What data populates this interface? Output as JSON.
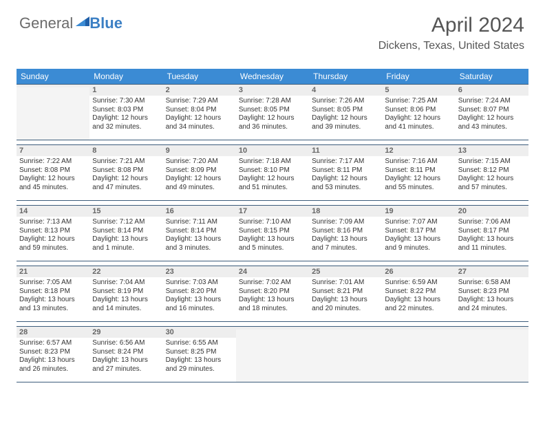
{
  "logo": {
    "general": "General",
    "blue": "Blue"
  },
  "header": {
    "title": "April 2024",
    "location": "Dickens, Texas, United States",
    "title_fontsize": 30,
    "loc_fontsize": 16,
    "title_color": "#555555"
  },
  "calendar": {
    "header_bg": "#3b8bd4",
    "header_fg": "#ffffff",
    "rule_color": "#3b5b7a",
    "daynum_bg": "#eeeeee",
    "empty_bg": "#f4f4f4",
    "cell_fontsize": 10,
    "columns": [
      "Sunday",
      "Monday",
      "Tuesday",
      "Wednesday",
      "Thursday",
      "Friday",
      "Saturday"
    ],
    "weeks": [
      [
        {
          "num": "",
          "sunrise": "",
          "sunset": "",
          "daylight1": "",
          "daylight2": ""
        },
        {
          "num": "1",
          "sunrise": "Sunrise: 7:30 AM",
          "sunset": "Sunset: 8:03 PM",
          "daylight1": "Daylight: 12 hours",
          "daylight2": "and 32 minutes."
        },
        {
          "num": "2",
          "sunrise": "Sunrise: 7:29 AM",
          "sunset": "Sunset: 8:04 PM",
          "daylight1": "Daylight: 12 hours",
          "daylight2": "and 34 minutes."
        },
        {
          "num": "3",
          "sunrise": "Sunrise: 7:28 AM",
          "sunset": "Sunset: 8:05 PM",
          "daylight1": "Daylight: 12 hours",
          "daylight2": "and 36 minutes."
        },
        {
          "num": "4",
          "sunrise": "Sunrise: 7:26 AM",
          "sunset": "Sunset: 8:05 PM",
          "daylight1": "Daylight: 12 hours",
          "daylight2": "and 39 minutes."
        },
        {
          "num": "5",
          "sunrise": "Sunrise: 7:25 AM",
          "sunset": "Sunset: 8:06 PM",
          "daylight1": "Daylight: 12 hours",
          "daylight2": "and 41 minutes."
        },
        {
          "num": "6",
          "sunrise": "Sunrise: 7:24 AM",
          "sunset": "Sunset: 8:07 PM",
          "daylight1": "Daylight: 12 hours",
          "daylight2": "and 43 minutes."
        }
      ],
      [
        {
          "num": "7",
          "sunrise": "Sunrise: 7:22 AM",
          "sunset": "Sunset: 8:08 PM",
          "daylight1": "Daylight: 12 hours",
          "daylight2": "and 45 minutes."
        },
        {
          "num": "8",
          "sunrise": "Sunrise: 7:21 AM",
          "sunset": "Sunset: 8:08 PM",
          "daylight1": "Daylight: 12 hours",
          "daylight2": "and 47 minutes."
        },
        {
          "num": "9",
          "sunrise": "Sunrise: 7:20 AM",
          "sunset": "Sunset: 8:09 PM",
          "daylight1": "Daylight: 12 hours",
          "daylight2": "and 49 minutes."
        },
        {
          "num": "10",
          "sunrise": "Sunrise: 7:18 AM",
          "sunset": "Sunset: 8:10 PM",
          "daylight1": "Daylight: 12 hours",
          "daylight2": "and 51 minutes."
        },
        {
          "num": "11",
          "sunrise": "Sunrise: 7:17 AM",
          "sunset": "Sunset: 8:11 PM",
          "daylight1": "Daylight: 12 hours",
          "daylight2": "and 53 minutes."
        },
        {
          "num": "12",
          "sunrise": "Sunrise: 7:16 AM",
          "sunset": "Sunset: 8:11 PM",
          "daylight1": "Daylight: 12 hours",
          "daylight2": "and 55 minutes."
        },
        {
          "num": "13",
          "sunrise": "Sunrise: 7:15 AM",
          "sunset": "Sunset: 8:12 PM",
          "daylight1": "Daylight: 12 hours",
          "daylight2": "and 57 minutes."
        }
      ],
      [
        {
          "num": "14",
          "sunrise": "Sunrise: 7:13 AM",
          "sunset": "Sunset: 8:13 PM",
          "daylight1": "Daylight: 12 hours",
          "daylight2": "and 59 minutes."
        },
        {
          "num": "15",
          "sunrise": "Sunrise: 7:12 AM",
          "sunset": "Sunset: 8:14 PM",
          "daylight1": "Daylight: 13 hours",
          "daylight2": "and 1 minute."
        },
        {
          "num": "16",
          "sunrise": "Sunrise: 7:11 AM",
          "sunset": "Sunset: 8:14 PM",
          "daylight1": "Daylight: 13 hours",
          "daylight2": "and 3 minutes."
        },
        {
          "num": "17",
          "sunrise": "Sunrise: 7:10 AM",
          "sunset": "Sunset: 8:15 PM",
          "daylight1": "Daylight: 13 hours",
          "daylight2": "and 5 minutes."
        },
        {
          "num": "18",
          "sunrise": "Sunrise: 7:09 AM",
          "sunset": "Sunset: 8:16 PM",
          "daylight1": "Daylight: 13 hours",
          "daylight2": "and 7 minutes."
        },
        {
          "num": "19",
          "sunrise": "Sunrise: 7:07 AM",
          "sunset": "Sunset: 8:17 PM",
          "daylight1": "Daylight: 13 hours",
          "daylight2": "and 9 minutes."
        },
        {
          "num": "20",
          "sunrise": "Sunrise: 7:06 AM",
          "sunset": "Sunset: 8:17 PM",
          "daylight1": "Daylight: 13 hours",
          "daylight2": "and 11 minutes."
        }
      ],
      [
        {
          "num": "21",
          "sunrise": "Sunrise: 7:05 AM",
          "sunset": "Sunset: 8:18 PM",
          "daylight1": "Daylight: 13 hours",
          "daylight2": "and 13 minutes."
        },
        {
          "num": "22",
          "sunrise": "Sunrise: 7:04 AM",
          "sunset": "Sunset: 8:19 PM",
          "daylight1": "Daylight: 13 hours",
          "daylight2": "and 14 minutes."
        },
        {
          "num": "23",
          "sunrise": "Sunrise: 7:03 AM",
          "sunset": "Sunset: 8:20 PM",
          "daylight1": "Daylight: 13 hours",
          "daylight2": "and 16 minutes."
        },
        {
          "num": "24",
          "sunrise": "Sunrise: 7:02 AM",
          "sunset": "Sunset: 8:20 PM",
          "daylight1": "Daylight: 13 hours",
          "daylight2": "and 18 minutes."
        },
        {
          "num": "25",
          "sunrise": "Sunrise: 7:01 AM",
          "sunset": "Sunset: 8:21 PM",
          "daylight1": "Daylight: 13 hours",
          "daylight2": "and 20 minutes."
        },
        {
          "num": "26",
          "sunrise": "Sunrise: 6:59 AM",
          "sunset": "Sunset: 8:22 PM",
          "daylight1": "Daylight: 13 hours",
          "daylight2": "and 22 minutes."
        },
        {
          "num": "27",
          "sunrise": "Sunrise: 6:58 AM",
          "sunset": "Sunset: 8:23 PM",
          "daylight1": "Daylight: 13 hours",
          "daylight2": "and 24 minutes."
        }
      ],
      [
        {
          "num": "28",
          "sunrise": "Sunrise: 6:57 AM",
          "sunset": "Sunset: 8:23 PM",
          "daylight1": "Daylight: 13 hours",
          "daylight2": "and 26 minutes."
        },
        {
          "num": "29",
          "sunrise": "Sunrise: 6:56 AM",
          "sunset": "Sunset: 8:24 PM",
          "daylight1": "Daylight: 13 hours",
          "daylight2": "and 27 minutes."
        },
        {
          "num": "30",
          "sunrise": "Sunrise: 6:55 AM",
          "sunset": "Sunset: 8:25 PM",
          "daylight1": "Daylight: 13 hours",
          "daylight2": "and 29 minutes."
        },
        {
          "num": "",
          "sunrise": "",
          "sunset": "",
          "daylight1": "",
          "daylight2": ""
        },
        {
          "num": "",
          "sunrise": "",
          "sunset": "",
          "daylight1": "",
          "daylight2": ""
        },
        {
          "num": "",
          "sunrise": "",
          "sunset": "",
          "daylight1": "",
          "daylight2": ""
        },
        {
          "num": "",
          "sunrise": "",
          "sunset": "",
          "daylight1": "",
          "daylight2": ""
        }
      ]
    ]
  }
}
